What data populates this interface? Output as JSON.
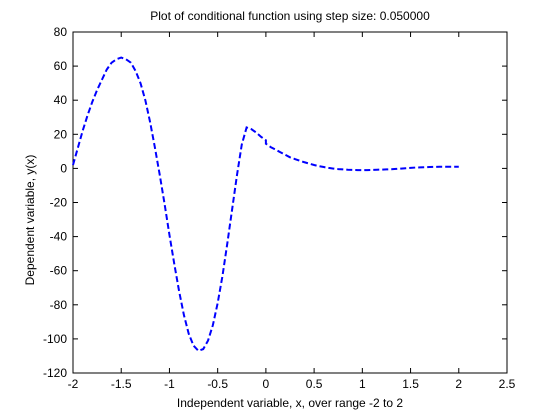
{
  "chart_data": {
    "type": "line",
    "title": "Plot of conditional function using step size: 0.050000",
    "xlabel": "Independent variable, x, over range -2 to 2",
    "ylabel": "Dependent variable, y(x)",
    "xlim": [
      -2,
      2.5
    ],
    "ylim": [
      -120,
      80
    ],
    "xticks": [
      -2,
      -1.5,
      -1,
      -0.5,
      0,
      0.5,
      1,
      1.5,
      2,
      2.5
    ],
    "xtick_labels": [
      "-2",
      "-1.5",
      "-1",
      "-0.5",
      "0",
      "0.5",
      "1",
      "1.5",
      "2",
      "2.5"
    ],
    "yticks": [
      -120,
      -100,
      -80,
      -60,
      -40,
      -20,
      0,
      20,
      40,
      60,
      80
    ],
    "ytick_labels": [
      "-120",
      "-100",
      "-80",
      "-60",
      "-40",
      "-20",
      "0",
      "20",
      "40",
      "60",
      "80"
    ],
    "grid": false,
    "series": [
      {
        "color": "#0000ff",
        "line_style": "dashed",
        "x": [
          -2.0,
          -1.95,
          -1.9,
          -1.85,
          -1.8,
          -1.75,
          -1.7,
          -1.65,
          -1.6,
          -1.55,
          -1.5,
          -1.45,
          -1.4,
          -1.35,
          -1.3,
          -1.25,
          -1.2,
          -1.15,
          -1.1,
          -1.05,
          -1.0,
          -0.95,
          -0.9,
          -0.85,
          -0.8,
          -0.75,
          -0.7,
          -0.65,
          -0.6,
          -0.55,
          -0.5,
          -0.45,
          -0.4,
          -0.35,
          -0.3,
          -0.25,
          -0.2,
          -0.15,
          -0.1,
          -0.05,
          0.0,
          0.0,
          0.05,
          0.1,
          0.15,
          0.2,
          0.25,
          0.3,
          0.35,
          0.4,
          0.45,
          0.5,
          0.55,
          0.6,
          0.65,
          0.7,
          0.75,
          0.8,
          0.85,
          0.9,
          0.95,
          1.0,
          1.05,
          1.1,
          1.15,
          1.2,
          1.25,
          1.3,
          1.35,
          1.4,
          1.45,
          1.5,
          1.55,
          1.6,
          1.65,
          1.7,
          1.75,
          1.8,
          1.85,
          1.9,
          1.95,
          2.0
        ],
        "y": [
          2,
          12,
          22,
          31,
          39,
          46,
          52,
          58,
          62,
          64,
          65,
          64,
          62,
          57,
          50,
          40,
          27,
          12,
          -4,
          -21,
          -39,
          -56,
          -72,
          -86,
          -97,
          -104,
          -107,
          -106,
          -101,
          -92,
          -79,
          -63,
          -44,
          -24,
          -4,
          14,
          24,
          23,
          21,
          18.5,
          16.5,
          14.5,
          12.5,
          11,
          9.5,
          8,
          6.5,
          5.5,
          4.5,
          3.6,
          2.8,
          2.0,
          1.3,
          0.8,
          0.3,
          -0.1,
          -0.4,
          -0.6,
          -0.8,
          -0.9,
          -1.0,
          -1.0,
          -1.0,
          -0.9,
          -0.8,
          -0.7,
          -0.6,
          -0.5,
          -0.3,
          -0.1,
          0.1,
          0.3,
          0.5,
          0.6,
          0.7,
          0.8,
          0.9,
          1.0,
          1.0,
          1.0,
          1.0,
          1.0
        ]
      }
    ]
  }
}
